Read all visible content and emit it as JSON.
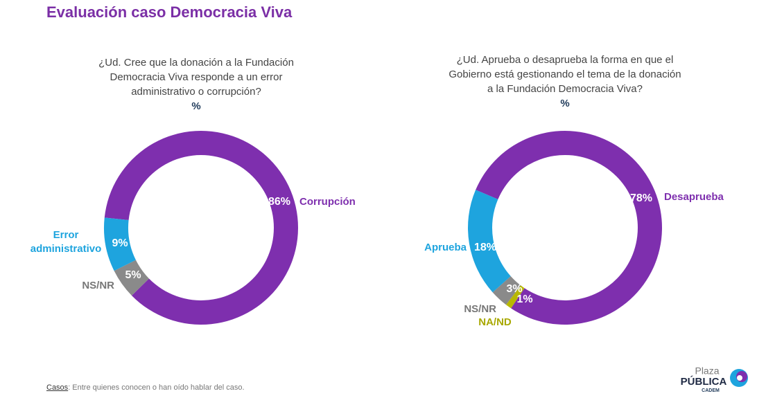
{
  "title": "Evaluación caso Democracia Viva",
  "footnote": {
    "label": "Casos",
    "text": ": Entre quienes conocen o han oído hablar del caso."
  },
  "logo": {
    "top": "Plaza",
    "main": "PÚBLICA",
    "sub": "CADEM"
  },
  "chart_data": [
    {
      "type": "donut",
      "title": "¿Ud. Cree que la donación a la Fundación Democracia Viva responde a un error administrativo o corrupción?",
      "unit": "%",
      "categories": [
        "Corrupción",
        "NS/NR",
        "Error administrativo"
      ],
      "values": [
        86,
        5,
        9
      ],
      "value_labels": [
        "86%",
        "5%",
        "9%"
      ],
      "colors": [
        "#7e2fae",
        "#8a8a8a",
        "#1ea4de"
      ]
    },
    {
      "type": "donut",
      "title": "¿Ud. Aprueba o desaprueba la forma en que el Gobierno está gestionando el tema de la donación a la Fundación Democracia Viva?",
      "unit": "%",
      "categories": [
        "Desaprueba",
        "NA/ND",
        "NS/NR",
        "Aprueba"
      ],
      "values": [
        78,
        1,
        3,
        18
      ],
      "value_labels": [
        "78%",
        "1%",
        "3%",
        "18%"
      ],
      "colors": [
        "#7e2fae",
        "#b8b800",
        "#8a8a8a",
        "#1ea4de"
      ]
    }
  ]
}
